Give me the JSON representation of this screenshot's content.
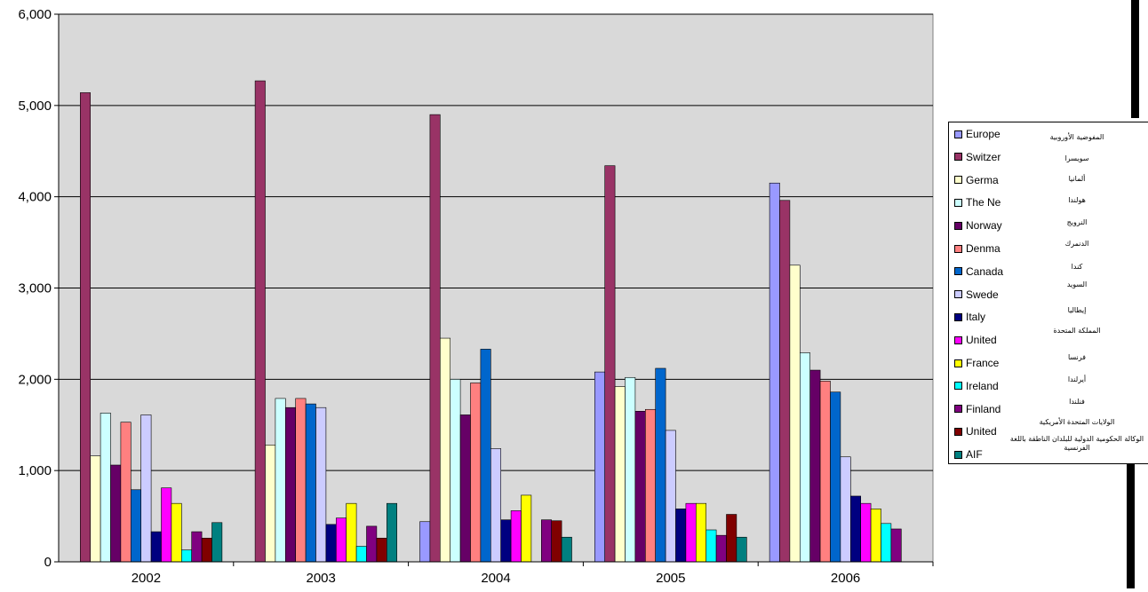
{
  "chart_data": {
    "type": "bar",
    "categories": [
      "2002",
      "2003",
      "2004",
      "2005",
      "2006"
    ],
    "ylim": [
      0,
      6000
    ],
    "yticks": [
      "0",
      "1,000",
      "2,000",
      "3,000",
      "4,000",
      "5,000",
      "6,000"
    ],
    "plot_background": "#d9d9d9",
    "grid": true,
    "legend_position": "right",
    "series": [
      {
        "name": "Europe",
        "arabic": "المفوضية الأوروبية",
        "color": "#9999ff",
        "values": [
          0,
          0,
          440,
          2080,
          4150
        ]
      },
      {
        "name": "Switzer",
        "arabic": "سويسرا",
        "color": "#993366",
        "values": [
          5140,
          5270,
          4900,
          4340,
          3960
        ]
      },
      {
        "name": "Germa",
        "arabic": "ألمانيا",
        "color": "#ffffcc",
        "values": [
          1160,
          1280,
          2450,
          1920,
          3250
        ]
      },
      {
        "name": "The Ne",
        "arabic": "هولندا",
        "color": "#ccffff",
        "values": [
          1630,
          1790,
          2000,
          2020,
          2290
        ]
      },
      {
        "name": "Norway",
        "arabic": "النرويج",
        "color": "#660066",
        "values": [
          1060,
          1690,
          1610,
          1650,
          2100
        ]
      },
      {
        "name": "Denma",
        "arabic": "الدنمرك",
        "color": "#ff8080",
        "values": [
          1530,
          1790,
          1960,
          1670,
          1980
        ]
      },
      {
        "name": "Canada",
        "arabic": "كندا",
        "color": "#0066cc",
        "values": [
          790,
          1730,
          2330,
          2120,
          1860
        ]
      },
      {
        "name": "Swede",
        "arabic": "السويد",
        "color": "#ccccff",
        "values": [
          1610,
          1690,
          1240,
          1440,
          1150
        ]
      },
      {
        "name": "Italy",
        "arabic": "إيطاليا",
        "color": "#000080",
        "values": [
          330,
          410,
          460,
          580,
          720
        ]
      },
      {
        "name": "United",
        "arabic": "المملكة المتحدة",
        "color": "#ff00ff",
        "values": [
          810,
          480,
          560,
          640,
          640
        ]
      },
      {
        "name": "France",
        "arabic": "فرنسا",
        "color": "#ffff00",
        "values": [
          640,
          640,
          730,
          640,
          580
        ]
      },
      {
        "name": "Ireland",
        "arabic": "أيرلندا",
        "color": "#00ffff",
        "values": [
          130,
          170,
          0,
          350,
          420
        ]
      },
      {
        "name": "Finland",
        "arabic": "فنلندا",
        "color": "#800080",
        "values": [
          330,
          390,
          460,
          290,
          360
        ]
      },
      {
        "name": "United",
        "arabic": "الولايات المتحدة الأمريكية",
        "color": "#800000",
        "values": [
          260,
          260,
          450,
          520,
          0
        ]
      },
      {
        "name": "AIF",
        "arabic": "الوكالة الحكومية الدولية للبلدان الناطقة باللغة الفرنسية",
        "color": "#008080",
        "values": [
          430,
          640,
          270,
          270,
          0
        ]
      }
    ]
  }
}
